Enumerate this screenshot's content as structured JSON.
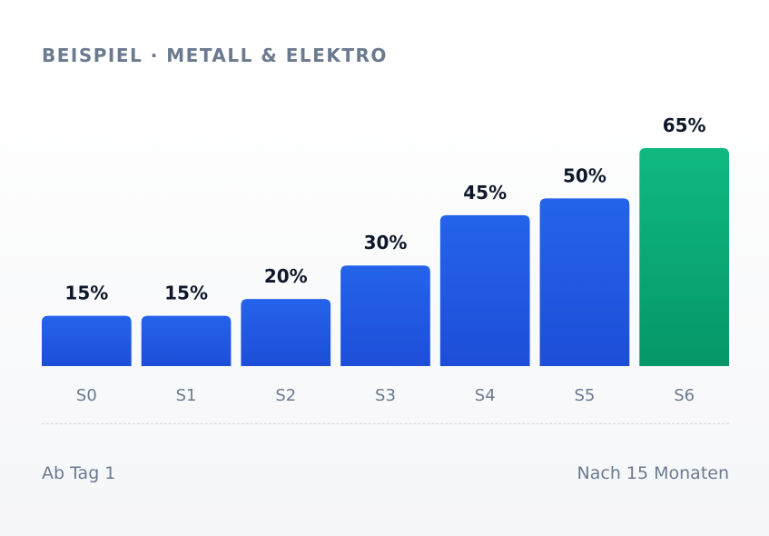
{
  "title": "BEISPIEL · METALL & ELEKTRO",
  "footer": {
    "left": "Ab Tag 1",
    "right": "Nach 15 Monaten"
  },
  "colors": {
    "bar_top": "#2563eb",
    "bar_bottom": "#1d4ed8",
    "highlight_top": "#10b981",
    "highlight_bottom": "#059669",
    "value_label": "#0f172a",
    "tick_label": "#6b7a8f"
  },
  "chart_data": {
    "type": "bar",
    "categories": [
      "S0",
      "S1",
      "S2",
      "S3",
      "S4",
      "S5",
      "S6"
    ],
    "values": [
      15,
      15,
      20,
      30,
      45,
      50,
      65
    ],
    "value_labels": [
      "15%",
      "15%",
      "20%",
      "30%",
      "45%",
      "50%",
      "65%"
    ],
    "highlight_index": 6,
    "unit": "%",
    "ylim": [
      0,
      65
    ],
    "grid": false,
    "legend": "none"
  }
}
